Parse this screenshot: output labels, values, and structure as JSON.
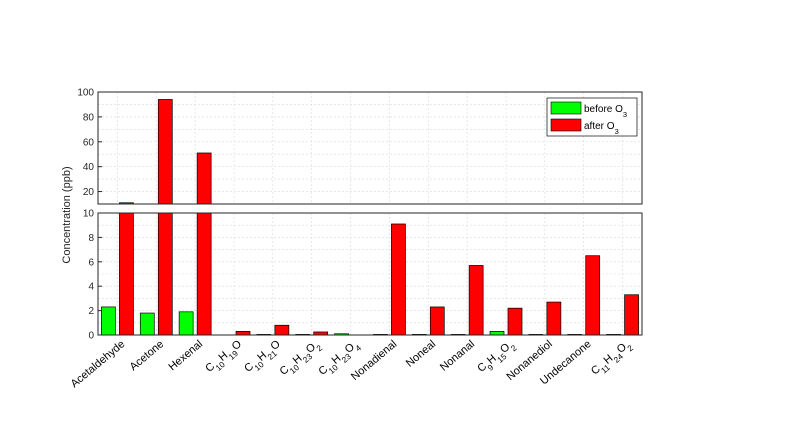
{
  "chart_data": {
    "type": "bar",
    "broken_axis": true,
    "ylabel": "Concentration (ppb)",
    "upper_ylim": [
      10,
      100
    ],
    "upper_yticks": [
      "20",
      "40",
      "60",
      "80",
      "100"
    ],
    "lower_ylim": [
      0,
      10
    ],
    "lower_yticks": [
      "0",
      "2",
      "4",
      "6",
      "8",
      "10"
    ],
    "grid": true,
    "legend_position": "top-right",
    "categories": [
      {
        "label": "Acetaldehyde"
      },
      {
        "label": "Acetone"
      },
      {
        "label": "Hexenal"
      },
      {
        "label": "C10H19O",
        "parts": [
          [
            "C",
            ""
          ],
          [
            "10",
            "sub"
          ],
          [
            "H",
            ""
          ],
          [
            "19",
            "sub"
          ],
          [
            "O",
            ""
          ]
        ]
      },
      {
        "label": "C10H21O",
        "parts": [
          [
            "C",
            ""
          ],
          [
            "10",
            "sub"
          ],
          [
            "H",
            ""
          ],
          [
            "21",
            "sub"
          ],
          [
            "O",
            ""
          ]
        ]
      },
      {
        "label": "C10H23O2",
        "parts": [
          [
            "C",
            ""
          ],
          [
            "10",
            "sub"
          ],
          [
            "H",
            ""
          ],
          [
            "23",
            "sub"
          ],
          [
            "O",
            ""
          ],
          [
            "2",
            "sub"
          ]
        ]
      },
      {
        "label": "C10H23O4",
        "parts": [
          [
            "C",
            ""
          ],
          [
            "10",
            "sub"
          ],
          [
            "H",
            ""
          ],
          [
            "23",
            "sub"
          ],
          [
            "O",
            ""
          ],
          [
            "4",
            "sub"
          ]
        ]
      },
      {
        "label": "Nonadienal"
      },
      {
        "label": "Noneal"
      },
      {
        "label": "Nonanal"
      },
      {
        "label": "C9H15O2",
        "parts": [
          [
            "C",
            ""
          ],
          [
            "9",
            "sub"
          ],
          [
            "H",
            ""
          ],
          [
            "15",
            "sub"
          ],
          [
            "O",
            ""
          ],
          [
            "2",
            "sub"
          ]
        ]
      },
      {
        "label": "Nonanediol"
      },
      {
        "label": "Undecanone"
      },
      {
        "label": "C11H24O2",
        "parts": [
          [
            "C",
            ""
          ],
          [
            "11",
            "sub"
          ],
          [
            "H",
            ""
          ],
          [
            "24",
            "sub"
          ],
          [
            "O",
            ""
          ],
          [
            "2",
            "sub"
          ]
        ]
      }
    ],
    "series": [
      {
        "name": "before O3",
        "legend_parts": [
          [
            "before O",
            ""
          ],
          [
            "3",
            "sub"
          ]
        ],
        "color": "#00ff00",
        "values": [
          2.3,
          1.8,
          1.9,
          0,
          0.05,
          0.05,
          0.1,
          0.05,
          0.05,
          0.05,
          0.3,
          0.05,
          0.05,
          0.05
        ]
      },
      {
        "name": "after O3",
        "legend_parts": [
          [
            "after O",
            ""
          ],
          [
            "3",
            "sub"
          ]
        ],
        "color": "#ff0000",
        "values": [
          11,
          94,
          51,
          0.3,
          0.8,
          0.25,
          0,
          9.1,
          2.3,
          5.7,
          2.2,
          2.7,
          6.5,
          3.3
        ]
      }
    ]
  }
}
